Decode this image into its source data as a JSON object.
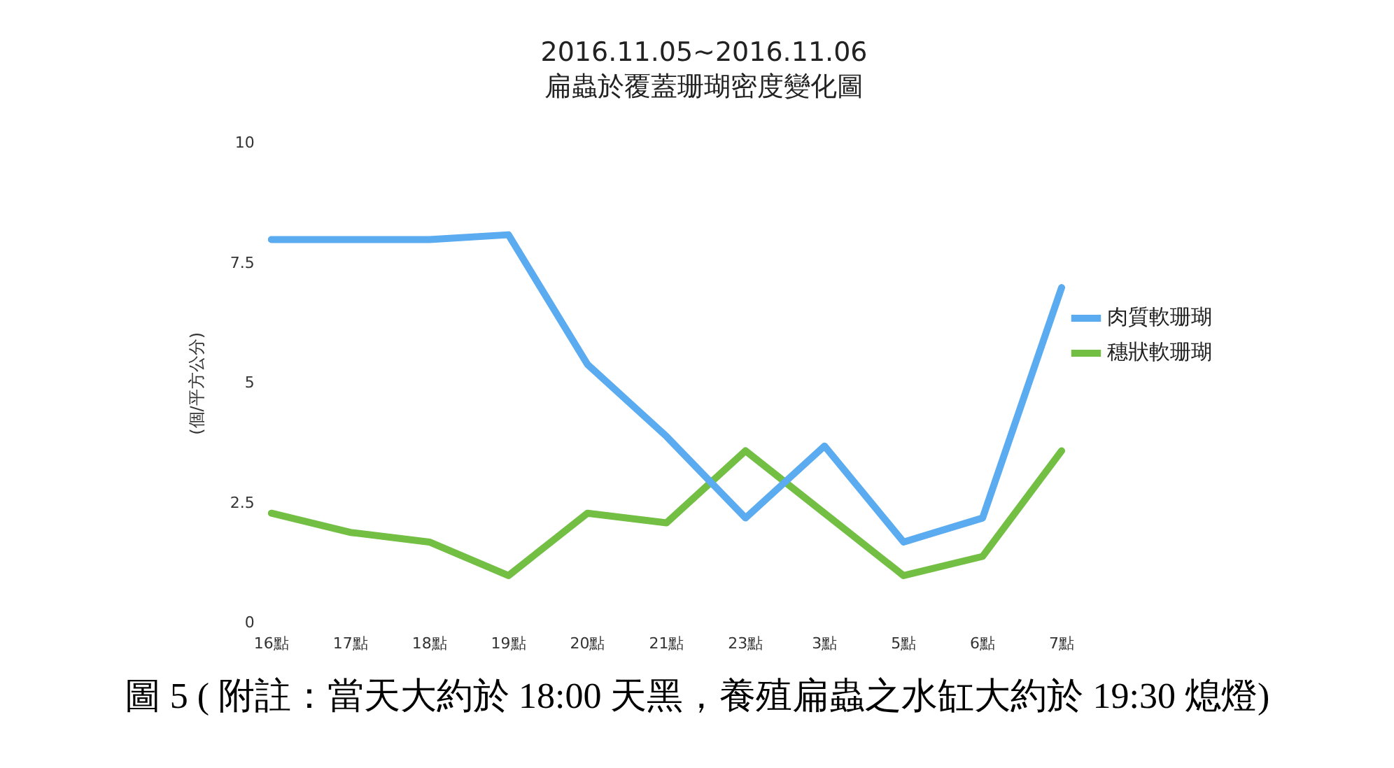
{
  "chart_data": {
    "type": "line",
    "title": "2016.11.05~2016.11.06",
    "subtitle": "扁蟲於覆蓋珊瑚密度變化圖",
    "ylabel": "(個/平方公分)",
    "categories": [
      "16點",
      "17點",
      "18點",
      "19點",
      "20點",
      "21點",
      "23點",
      "3點",
      "5點",
      "6點",
      "7點"
    ],
    "series": [
      {
        "name": "肉質軟珊瑚",
        "color": "#5aabf0",
        "values": [
          8,
          8,
          8,
          8.1,
          5.4,
          3.9,
          2.2,
          3.7,
          1.7,
          2.2,
          7.0
        ]
      },
      {
        "name": "穗狀軟珊瑚",
        "color": "#72bf44",
        "values": [
          2.3,
          1.9,
          1.7,
          1.0,
          2.3,
          2.1,
          3.6,
          2.3,
          1.0,
          1.4,
          3.6
        ]
      }
    ],
    "ylim": [
      0,
      10
    ],
    "yticks": [
      0,
      2.5,
      5,
      7.5,
      10
    ],
    "grid": false,
    "legend": "right",
    "marker": "none",
    "line_style": "solid",
    "annotations": [
      "圖 5 ( 附註：當天大約於 18:00 天黑，養殖扁蟲之水缸大約於 19:30 熄燈)"
    ]
  }
}
